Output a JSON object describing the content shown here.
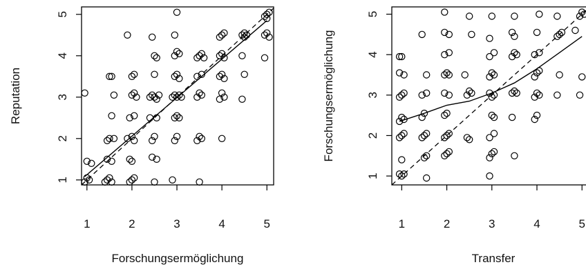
{
  "chart_data": [
    {
      "type": "scatter",
      "title": "",
      "xlabel": "Forschungsermöglichung",
      "ylabel": "Reputation",
      "xlim": [
        0.88,
        5.15
      ],
      "ylim": [
        0.88,
        5.18
      ],
      "xticks": [
        1,
        2,
        3,
        4,
        5
      ],
      "yticks": [
        1,
        2,
        3,
        4,
        5
      ],
      "grid": false,
      "reference_line": {
        "type": "identity",
        "style": "dashed"
      },
      "fit_line": {
        "style": "solid",
        "x": [
          0.95,
          5.0
        ],
        "y": [
          1.08,
          4.85
        ]
      },
      "points": [
        [
          0.95,
          0.95
        ],
        [
          1.0,
          1.05
        ],
        [
          1.05,
          1.0
        ],
        [
          1.0,
          1.45
        ],
        [
          1.1,
          1.4
        ],
        [
          0.95,
          3.1
        ],
        [
          1.4,
          0.95
        ],
        [
          1.45,
          1.0
        ],
        [
          1.5,
          1.05
        ],
        [
          1.55,
          0.95
        ],
        [
          1.45,
          1.5
        ],
        [
          1.55,
          1.45
        ],
        [
          1.45,
          1.95
        ],
        [
          1.5,
          2.0
        ],
        [
          1.6,
          2.0
        ],
        [
          1.55,
          2.55
        ],
        [
          1.5,
          3.5
        ],
        [
          1.55,
          3.5
        ],
        [
          1.6,
          3.05
        ],
        [
          1.95,
          0.95
        ],
        [
          2.0,
          1.0
        ],
        [
          2.05,
          1.05
        ],
        [
          1.95,
          1.5
        ],
        [
          2.0,
          1.45
        ],
        [
          1.9,
          2.0
        ],
        [
          2.0,
          2.05
        ],
        [
          2.05,
          1.95
        ],
        [
          1.95,
          2.5
        ],
        [
          2.05,
          2.55
        ],
        [
          2.0,
          3.05
        ],
        [
          2.1,
          3.0
        ],
        [
          2.05,
          3.1
        ],
        [
          2.0,
          3.5
        ],
        [
          2.05,
          3.55
        ],
        [
          1.9,
          4.5
        ],
        [
          2.5,
          0.95
        ],
        [
          2.45,
          1.55
        ],
        [
          2.55,
          1.5
        ],
        [
          2.45,
          1.95
        ],
        [
          2.5,
          2.05
        ],
        [
          2.4,
          2.5
        ],
        [
          2.55,
          2.5
        ],
        [
          2.4,
          3.0
        ],
        [
          2.45,
          3.05
        ],
        [
          2.5,
          3.0
        ],
        [
          2.55,
          2.95
        ],
        [
          2.6,
          3.05
        ],
        [
          2.5,
          3.55
        ],
        [
          2.55,
          3.95
        ],
        [
          2.5,
          4.0
        ],
        [
          2.45,
          4.45
        ],
        [
          2.9,
          1.0
        ],
        [
          2.95,
          1.95
        ],
        [
          3.0,
          2.05
        ],
        [
          2.95,
          2.5
        ],
        [
          3.0,
          2.55
        ],
        [
          3.05,
          2.5
        ],
        [
          2.9,
          3.0
        ],
        [
          2.95,
          3.05
        ],
        [
          3.0,
          3.0
        ],
        [
          3.05,
          3.05
        ],
        [
          3.1,
          3.0
        ],
        [
          2.95,
          3.5
        ],
        [
          3.0,
          3.55
        ],
        [
          3.05,
          3.45
        ],
        [
          2.95,
          4.0
        ],
        [
          3.0,
          4.1
        ],
        [
          3.05,
          4.05
        ],
        [
          2.95,
          4.5
        ],
        [
          3.0,
          5.05
        ],
        [
          3.5,
          0.95
        ],
        [
          3.45,
          1.95
        ],
        [
          3.55,
          2.0
        ],
        [
          3.5,
          2.05
        ],
        [
          3.45,
          3.0
        ],
        [
          3.55,
          3.05
        ],
        [
          3.5,
          3.1
        ],
        [
          3.45,
          3.5
        ],
        [
          3.55,
          3.55
        ],
        [
          3.45,
          3.95
        ],
        [
          3.5,
          4.0
        ],
        [
          3.55,
          4.05
        ],
        [
          3.6,
          3.95
        ],
        [
          4.0,
          2.0
        ],
        [
          3.95,
          2.95
        ],
        [
          4.05,
          3.0
        ],
        [
          4.0,
          3.1
        ],
        [
          3.95,
          3.5
        ],
        [
          4.05,
          3.45
        ],
        [
          4.0,
          3.55
        ],
        [
          3.95,
          4.0
        ],
        [
          4.0,
          4.05
        ],
        [
          4.05,
          3.95
        ],
        [
          3.95,
          4.45
        ],
        [
          4.0,
          4.5
        ],
        [
          4.05,
          4.55
        ],
        [
          4.45,
          2.95
        ],
        [
          4.5,
          3.55
        ],
        [
          4.45,
          4.0
        ],
        [
          4.5,
          4.45
        ],
        [
          4.55,
          4.5
        ],
        [
          4.5,
          4.55
        ],
        [
          4.45,
          4.5
        ],
        [
          4.95,
          3.95
        ],
        [
          4.95,
          4.5
        ],
        [
          5.0,
          4.55
        ],
        [
          5.05,
          4.45
        ],
        [
          4.95,
          4.95
        ],
        [
          5.0,
          5.0
        ],
        [
          5.05,
          5.05
        ],
        [
          5.0,
          4.9
        ]
      ]
    },
    {
      "type": "scatter",
      "title": "",
      "xlabel": "Transfer",
      "ylabel": "Forschungsermöglichung",
      "xlim": [
        0.78,
        5.15
      ],
      "ylim": [
        0.78,
        5.18
      ],
      "xticks": [
        1,
        2,
        3,
        4,
        5
      ],
      "yticks": [
        1,
        2,
        3,
        4,
        5
      ],
      "grid": false,
      "reference_line": {
        "type": "identity",
        "style": "dashed"
      },
      "fit_line": {
        "style": "solid",
        "x": [
          0.95,
          1.5,
          2.0,
          2.5,
          3.0,
          3.5,
          4.0,
          4.5,
          5.0
        ],
        "y": [
          2.35,
          2.55,
          2.75,
          2.85,
          3.05,
          3.3,
          3.65,
          4.05,
          4.45
        ]
      },
      "points": [
        [
          0.95,
          1.05
        ],
        [
          1.0,
          1.0
        ],
        [
          1.05,
          1.05
        ],
        [
          1.0,
          1.4
        ],
        [
          0.95,
          1.95
        ],
        [
          1.0,
          2.0
        ],
        [
          1.05,
          2.05
        ],
        [
          0.95,
          2.35
        ],
        [
          1.0,
          2.45
        ],
        [
          1.05,
          2.4
        ],
        [
          0.95,
          2.95
        ],
        [
          1.0,
          3.0
        ],
        [
          1.05,
          3.05
        ],
        [
          0.95,
          3.55
        ],
        [
          1.05,
          3.5
        ],
        [
          1.0,
          3.95
        ],
        [
          0.95,
          3.95
        ],
        [
          1.5,
          1.45
        ],
        [
          1.55,
          1.5
        ],
        [
          1.55,
          0.95
        ],
        [
          1.45,
          1.95
        ],
        [
          1.5,
          2.0
        ],
        [
          1.55,
          2.05
        ],
        [
          1.45,
          2.45
        ],
        [
          1.5,
          2.55
        ],
        [
          1.45,
          3.0
        ],
        [
          1.55,
          3.05
        ],
        [
          1.55,
          3.5
        ],
        [
          1.45,
          4.5
        ],
        [
          1.95,
          1.5
        ],
        [
          2.0,
          1.55
        ],
        [
          2.05,
          1.6
        ],
        [
          1.95,
          1.95
        ],
        [
          2.0,
          2.0
        ],
        [
          2.05,
          2.05
        ],
        [
          1.95,
          2.5
        ],
        [
          2.0,
          2.55
        ],
        [
          1.95,
          3.05
        ],
        [
          2.05,
          3.0
        ],
        [
          1.95,
          3.5
        ],
        [
          2.0,
          3.55
        ],
        [
          2.05,
          3.5
        ],
        [
          1.95,
          4.0
        ],
        [
          2.05,
          4.05
        ],
        [
          1.95,
          4.55
        ],
        [
          2.05,
          4.5
        ],
        [
          1.95,
          5.05
        ],
        [
          2.45,
          1.95
        ],
        [
          2.5,
          1.9
        ],
        [
          2.45,
          3.0
        ],
        [
          2.55,
          3.05
        ],
        [
          2.5,
          3.1
        ],
        [
          2.4,
          3.5
        ],
        [
          2.55,
          4.5
        ],
        [
          2.5,
          4.95
        ],
        [
          2.95,
          1.0
        ],
        [
          2.95,
          1.45
        ],
        [
          3.0,
          1.55
        ],
        [
          3.05,
          1.6
        ],
        [
          2.95,
          1.95
        ],
        [
          3.05,
          2.05
        ],
        [
          3.0,
          2.5
        ],
        [
          3.05,
          2.45
        ],
        [
          2.95,
          3.05
        ],
        [
          3.0,
          2.95
        ],
        [
          3.05,
          3.0
        ],
        [
          2.95,
          3.45
        ],
        [
          3.0,
          3.55
        ],
        [
          3.05,
          3.5
        ],
        [
          2.95,
          3.95
        ],
        [
          3.05,
          4.05
        ],
        [
          2.95,
          4.4
        ],
        [
          3.0,
          4.95
        ],
        [
          3.5,
          1.5
        ],
        [
          3.45,
          2.45
        ],
        [
          3.45,
          3.05
        ],
        [
          3.5,
          3.1
        ],
        [
          3.55,
          3.05
        ],
        [
          3.45,
          3.95
        ],
        [
          3.5,
          4.05
        ],
        [
          3.55,
          4.0
        ],
        [
          3.45,
          4.55
        ],
        [
          3.5,
          4.45
        ],
        [
          3.5,
          4.95
        ],
        [
          3.95,
          2.4
        ],
        [
          4.0,
          2.5
        ],
        [
          3.95,
          2.95
        ],
        [
          4.0,
          3.05
        ],
        [
          4.05,
          3.0
        ],
        [
          3.95,
          3.45
        ],
        [
          4.0,
          3.55
        ],
        [
          4.05,
          3.6
        ],
        [
          3.95,
          4.0
        ],
        [
          4.05,
          4.05
        ],
        [
          4.0,
          4.55
        ],
        [
          4.05,
          5.0
        ],
        [
          4.45,
          3.0
        ],
        [
          4.5,
          3.5
        ],
        [
          4.45,
          4.45
        ],
        [
          4.5,
          4.5
        ],
        [
          4.55,
          4.55
        ],
        [
          4.45,
          4.95
        ],
        [
          4.85,
          4.6
        ],
        [
          4.95,
          3.0
        ],
        [
          5.0,
          3.45
        ],
        [
          4.95,
          4.95
        ],
        [
          5.0,
          5.05
        ],
        [
          5.05,
          5.0
        ]
      ]
    }
  ]
}
